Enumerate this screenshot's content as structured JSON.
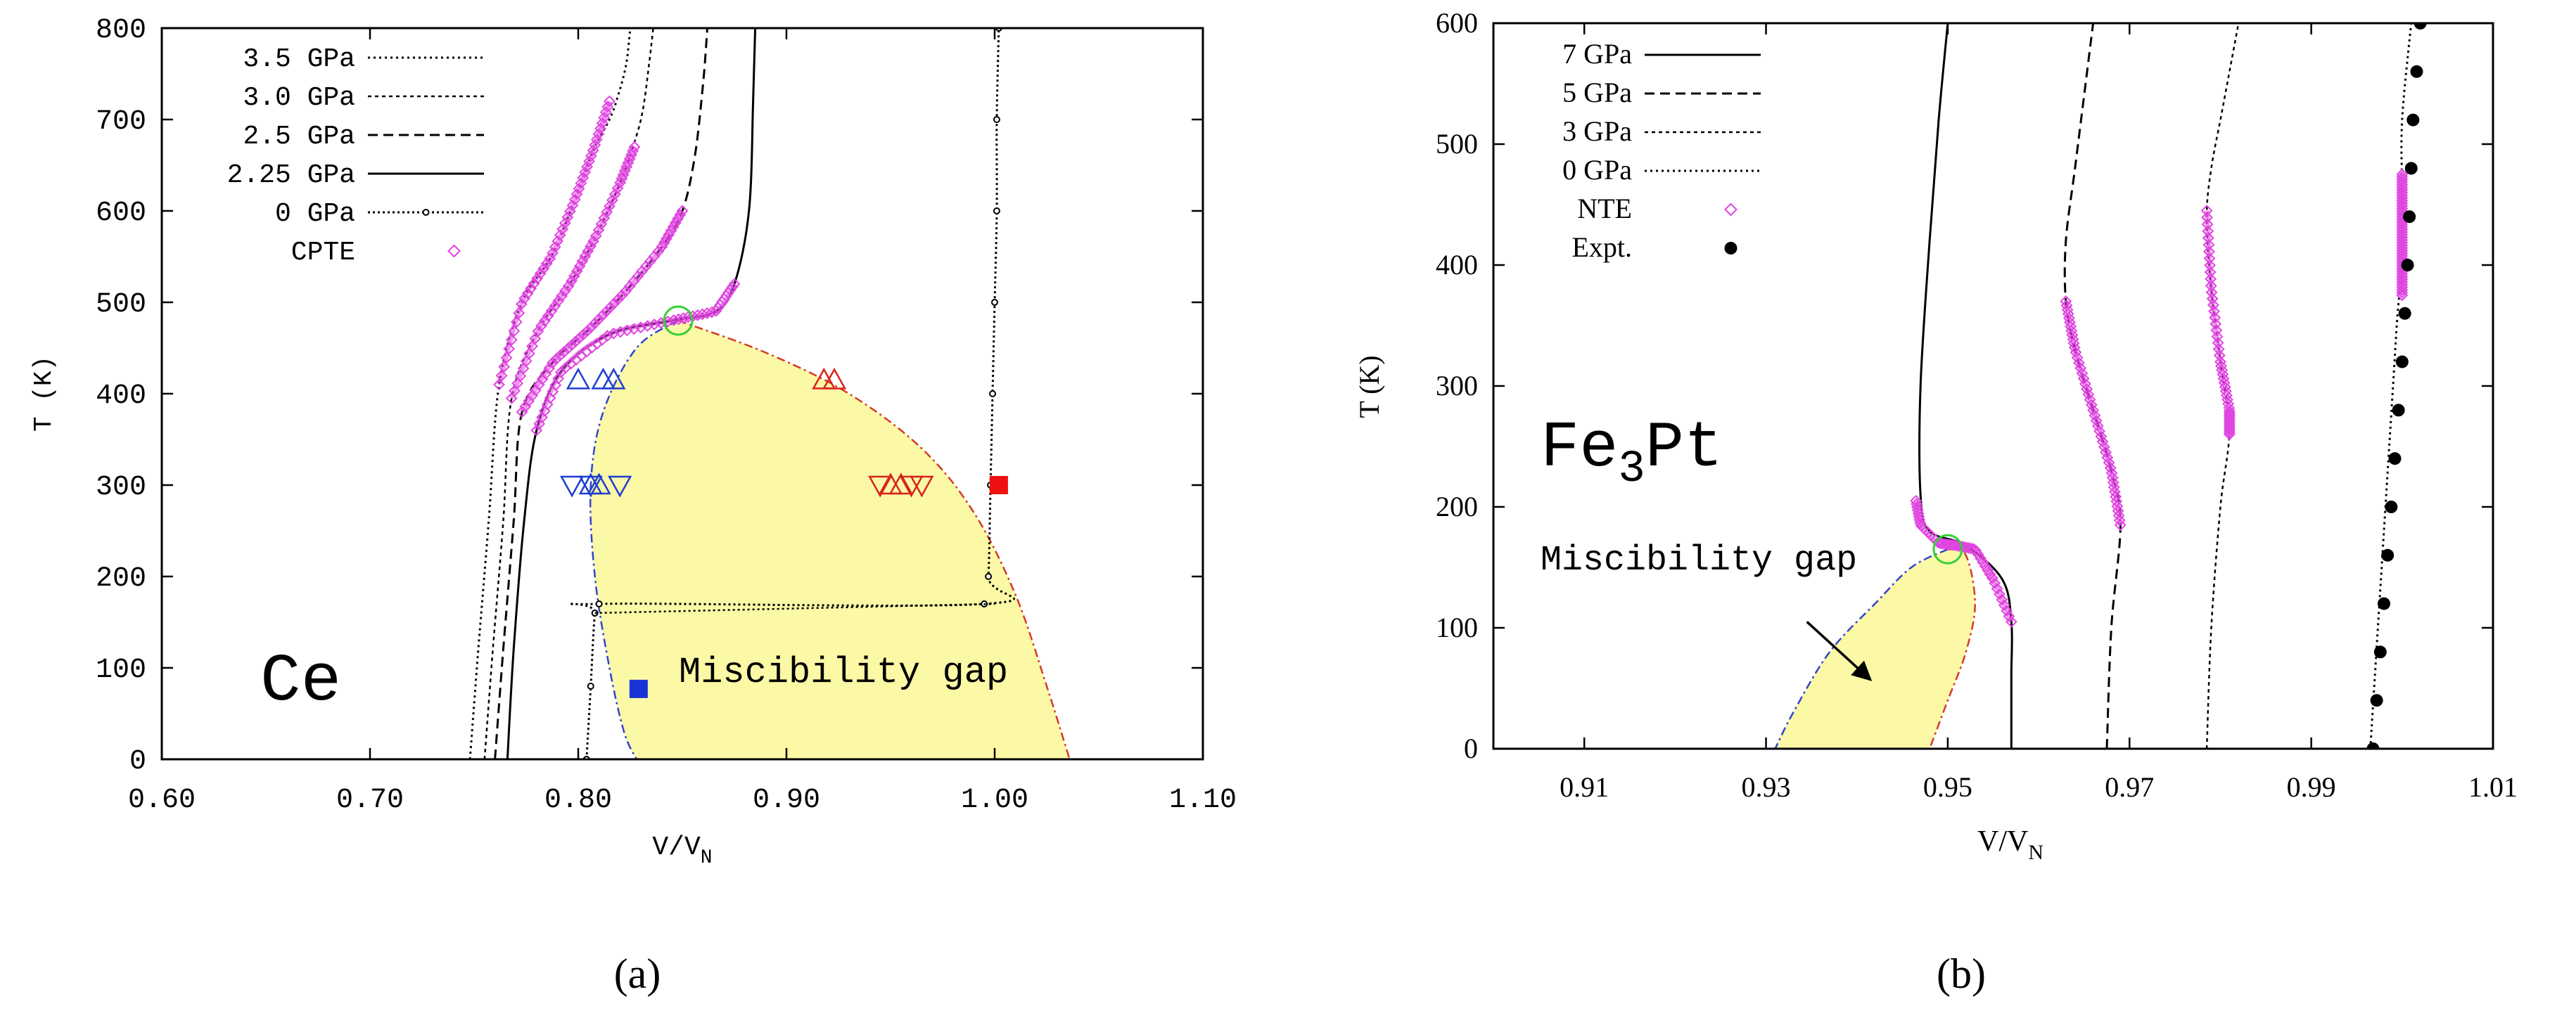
{
  "chart_data": [
    {
      "id": "a",
      "type": "line",
      "caption": "(a)",
      "xlabel": "V/V",
      "xlabel_sub": "N",
      "ylabel": "T (K)",
      "xlim": [
        0.6,
        1.1
      ],
      "ylim": [
        0,
        800
      ],
      "xticks": [
        0.6,
        0.7,
        0.8,
        0.9,
        1.0,
        1.1
      ],
      "xtick_labels": [
        "0.60",
        "0.70",
        "0.80",
        "0.90",
        "1.00",
        "1.10"
      ],
      "yticks": [
        0,
        100,
        200,
        300,
        400,
        500,
        600,
        700,
        800
      ],
      "ytick_labels": [
        "0",
        "100",
        "200",
        "300",
        "400",
        "500",
        "600",
        "700",
        "800"
      ],
      "element_label": "Ce",
      "annotation": "Miscibility gap",
      "legend": [
        {
          "label": "3.5 GPa",
          "style": "dotted"
        },
        {
          "label": "3.0 GPa",
          "style": "dotted-fine"
        },
        {
          "label": "2.5 GPa",
          "style": "dashed"
        },
        {
          "label": "2.25 GPa",
          "style": "solid"
        },
        {
          "label": "0 GPa",
          "style": "dotted-points"
        },
        {
          "label": "CPTE",
          "style": "diamond"
        }
      ],
      "series": [
        {
          "name": "3.5 GPa",
          "style": "dotted",
          "x": [
            0.748,
            0.752,
            0.757,
            0.762,
            0.773,
            0.787,
            0.798,
            0.807,
            0.815,
            0.819,
            0.823,
            0.825
          ],
          "y": [
            0,
            120,
            260,
            410,
            500,
            550,
            610,
            665,
            700,
            725,
            760,
            800
          ]
        },
        {
          "name": "3.0 GPa",
          "style": "dotted-fine",
          "x": [
            0.755,
            0.759,
            0.764,
            0.768,
            0.781,
            0.796,
            0.808,
            0.82,
            0.827,
            0.831,
            0.834,
            0.836
          ],
          "y": [
            0,
            120,
            260,
            395,
            470,
            520,
            570,
            630,
            675,
            710,
            760,
            800
          ]
        },
        {
          "name": "2.5 GPa",
          "style": "dashed",
          "x": [
            0.76,
            0.764,
            0.769,
            0.773,
            0.788,
            0.805,
            0.822,
            0.84,
            0.85,
            0.856,
            0.86,
            0.862
          ],
          "y": [
            0,
            120,
            260,
            380,
            435,
            470,
            510,
            560,
            600,
            660,
            740,
            800
          ]
        },
        {
          "name": "2.25 GPa",
          "style": "solid",
          "x": [
            0.766,
            0.769,
            0.774,
            0.78,
            0.792,
            0.815,
            0.845,
            0.866,
            0.875,
            0.882,
            0.884,
            0.885
          ],
          "y": [
            0,
            120,
            260,
            360,
            425,
            465,
            480,
            490,
            520,
            600,
            720,
            800
          ]
        },
        {
          "name": "0 GPa",
          "style": "dotted-points",
          "x": [
            0.804,
            0.806,
            0.808,
            0.81,
            0.995,
            0.997,
            0.998,
            0.999,
            1.0,
            1.001,
            1.001,
            1.002
          ],
          "y": [
            0,
            80,
            160,
            170,
            170,
            200,
            300,
            400,
            500,
            600,
            700,
            800
          ]
        }
      ],
      "cpte": [
        {
          "x": [
            0.762,
            0.773,
            0.787,
            0.798,
            0.807,
            0.815
          ],
          "y": [
            410,
            500,
            550,
            610,
            665,
            720
          ]
        },
        {
          "x": [
            0.768,
            0.781,
            0.796,
            0.808,
            0.82,
            0.827
          ],
          "y": [
            395,
            470,
            520,
            570,
            630,
            670
          ]
        },
        {
          "x": [
            0.773,
            0.788,
            0.805,
            0.822,
            0.84,
            0.85
          ],
          "y": [
            380,
            435,
            470,
            510,
            560,
            600
          ]
        },
        {
          "x": [
            0.78,
            0.792,
            0.815,
            0.845,
            0.866,
            0.875
          ],
          "y": [
            360,
            425,
            465,
            480,
            490,
            520
          ]
        }
      ],
      "gap_boundary_left": {
        "x": [
          0.848,
          0.828,
          0.812,
          0.806,
          0.808,
          0.815,
          0.822,
          0.828
        ],
        "y": [
          480,
          450,
          380,
          300,
          200,
          100,
          30,
          0
        ]
      },
      "gap_boundary_right": {
        "x": [
          0.848,
          0.89,
          0.93,
          0.965,
          0.99,
          1.01,
          1.025,
          1.036
        ],
        "y": [
          480,
          445,
          400,
          340,
          270,
          180,
          80,
          0
        ]
      },
      "critical_point": {
        "x": 0.848,
        "y": 480
      },
      "tie_line": {
        "x": [
          0.808,
          1.0
        ],
        "y": [
          160,
          170
        ]
      },
      "triangles_up": [
        {
          "x": [
            0.8,
            0.812,
            0.817,
            0.806,
            0.81
          ],
          "y": [
            415,
            415,
            415,
            300,
            300
          ],
          "color": "#1f3fd1"
        },
        {
          "x": [
            0.918,
            0.923,
            0.95,
            0.955
          ],
          "y": [
            415,
            415,
            300,
            300
          ],
          "color": "#d8241e"
        }
      ],
      "triangles_down": [
        {
          "x": [
            0.797,
            0.806,
            0.82
          ],
          "y": [
            300,
            300,
            300
          ],
          "color": "#1f3fd1"
        },
        {
          "x": [
            0.945,
            0.96,
            0.965
          ],
          "y": [
            300,
            300,
            300
          ],
          "color": "#d8241e"
        }
      ],
      "squares": [
        {
          "x": 1.002,
          "y": 300,
          "color": "#ee1111"
        },
        {
          "x": 0.829,
          "y": 77,
          "color": "#1a33d6"
        }
      ]
    },
    {
      "id": "b",
      "type": "line",
      "caption": "(b)",
      "xlabel": "V/V",
      "xlabel_sub": "N",
      "ylabel": "T (K)",
      "xlim": [
        0.9,
        1.01
      ],
      "ylim": [
        0,
        600
      ],
      "xticks": [
        0.91,
        0.93,
        0.95,
        0.97,
        0.99,
        1.01
      ],
      "xtick_labels": [
        "0.91",
        "0.93",
        "0.95",
        "0.97",
        "0.99",
        "1.01"
      ],
      "yticks": [
        0,
        100,
        200,
        300,
        400,
        500,
        600
      ],
      "ytick_labels": [
        "0",
        "100",
        "200",
        "300",
        "400",
        "500",
        "600"
      ],
      "element_label": "Fe",
      "element_sub": "3",
      "element_label_tail": "Pt",
      "annotation": "Miscibility gap",
      "legend": [
        {
          "label": "7 GPa",
          "style": "solid"
        },
        {
          "label": "5 GPa",
          "style": "dashed"
        },
        {
          "label": "3 GPa",
          "style": "dotted-fine"
        },
        {
          "label": "0 GPa",
          "style": "dotted"
        },
        {
          "label": "NTE",
          "style": "diamond"
        },
        {
          "label": "Expt.",
          "style": "circle"
        }
      ],
      "series": [
        {
          "name": "7 GPa",
          "style": "solid",
          "x": [
            0.957,
            0.957,
            0.957,
            0.956,
            0.952,
            0.948,
            0.947,
            0.947,
            0.948,
            0.949,
            0.95
          ],
          "y": [
            0,
            60,
            105,
            140,
            168,
            180,
            210,
            300,
            420,
            520,
            600
          ]
        },
        {
          "name": "5 GPa",
          "style": "dashed",
          "x": [
            0.9675,
            0.968,
            0.969,
            0.968,
            0.966,
            0.964,
            0.963,
            0.963,
            0.964,
            0.965,
            0.966
          ],
          "y": [
            0,
            100,
            185,
            230,
            280,
            330,
            370,
            420,
            480,
            540,
            600
          ]
        },
        {
          "name": "3 GPa",
          "style": "dotted-fine",
          "x": [
            0.9785,
            0.979,
            0.98,
            0.981,
            0.98,
            0.979,
            0.9785,
            0.979,
            0.98,
            0.981,
            0.982
          ],
          "y": [
            0,
            100,
            200,
            265,
            320,
            380,
            440,
            480,
            520,
            560,
            600
          ]
        },
        {
          "name": "0 GPa",
          "style": "dotted",
          "x": [
            0.9965,
            0.997,
            0.9975,
            0.998,
            0.9985,
            0.999,
            0.9995,
            1.0,
            1.0,
            1.0,
            1.001
          ],
          "y": [
            0,
            60,
            120,
            180,
            240,
            300,
            360,
            400,
            460,
            520,
            600
          ]
        }
      ],
      "nte": [
        {
          "x": [
            0.9465,
            0.947,
            0.949,
            0.951,
            0.953,
            0.955,
            0.957
          ],
          "y": [
            205,
            185,
            170,
            168,
            165,
            140,
            105
          ]
        },
        {
          "x": [
            0.963,
            0.964,
            0.966,
            0.968,
            0.969
          ],
          "y": [
            370,
            330,
            280,
            230,
            185
          ]
        },
        {
          "x": [
            0.9785,
            0.979,
            0.98,
            0.981,
            0.981
          ],
          "y": [
            445,
            380,
            320,
            280,
            260
          ]
        },
        {
          "x": [
            1.0,
            1.0,
            1.0,
            1.0,
            1.0
          ],
          "y": [
            475,
            450,
            425,
            400,
            375
          ]
        }
      ],
      "expt": {
        "x": [
          0.9968,
          0.9972,
          0.9976,
          0.998,
          0.9984,
          0.9988,
          0.9992,
          0.9996,
          1.0,
          1.0003,
          1.0006,
          1.0008,
          1.001,
          1.0012,
          1.0016,
          1.002
        ],
        "y": [
          0,
          40,
          80,
          120,
          160,
          200,
          240,
          280,
          320,
          360,
          400,
          440,
          480,
          520,
          560,
          600
        ]
      },
      "gap_boundary_left": {
        "x": [
          0.95,
          0.946,
          0.942,
          0.937,
          0.933,
          0.931
        ],
        "y": [
          165,
          150,
          120,
          80,
          30,
          0
        ]
      },
      "gap_boundary_right": {
        "x": [
          0.95,
          0.952,
          0.953,
          0.952,
          0.95,
          0.948
        ],
        "y": [
          165,
          160,
          120,
          80,
          40,
          0
        ]
      },
      "critical_point": {
        "x": 0.95,
        "y": 165
      },
      "arrow": {
        "from": {
          "x": 0.9345,
          "y": 105
        },
        "to": {
          "x": 0.9415,
          "y": 57
        }
      }
    }
  ]
}
